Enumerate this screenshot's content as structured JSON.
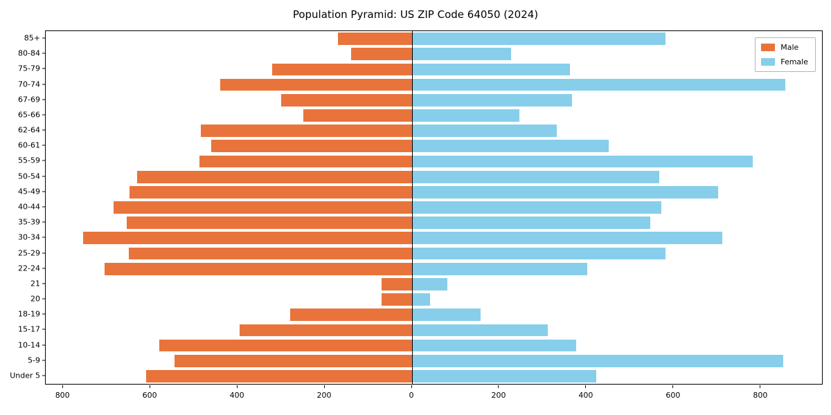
{
  "title": "Population Pyramid: US ZIP Code 64050 (2024)",
  "legend": {
    "male": "Male",
    "female": "Female"
  },
  "chart_data": {
    "type": "bar",
    "subtype": "population-pyramid",
    "title": "Population Pyramid: US ZIP Code 64050 (2024)",
    "orientation": "horizontal",
    "categories_top_to_bottom": [
      "85+",
      "80-84",
      "75-79",
      "70-74",
      "67-69",
      "65-66",
      "62-64",
      "60-61",
      "55-59",
      "50-54",
      "45-49",
      "40-44",
      "35-39",
      "30-34",
      "25-29",
      "22-24",
      "21",
      "20",
      "18-19",
      "15-17",
      "10-14",
      "5-9",
      "Under 5"
    ],
    "series": [
      {
        "name": "Male",
        "side": "left",
        "color": "#e8743b",
        "values": [
          170,
          140,
          320,
          440,
          300,
          250,
          485,
          460,
          487,
          630,
          648,
          685,
          655,
          755,
          650,
          705,
          70,
          70,
          280,
          395,
          580,
          545,
          610
        ]
      },
      {
        "name": "Female",
        "side": "right",
        "color": "#87ceeb",
        "values": [
          580,
          225,
          360,
          855,
          365,
          245,
          330,
          450,
          780,
          565,
          700,
          570,
          545,
          710,
          580,
          400,
          80,
          40,
          155,
          310,
          375,
          850,
          420
        ]
      }
    ],
    "x_ticks": [
      800,
      600,
      400,
      200,
      0,
      200,
      400,
      600,
      800
    ],
    "xlim_left": 840,
    "xlim_right": 940,
    "grid": false,
    "legend_position": "upper-right",
    "zero_line": true
  }
}
